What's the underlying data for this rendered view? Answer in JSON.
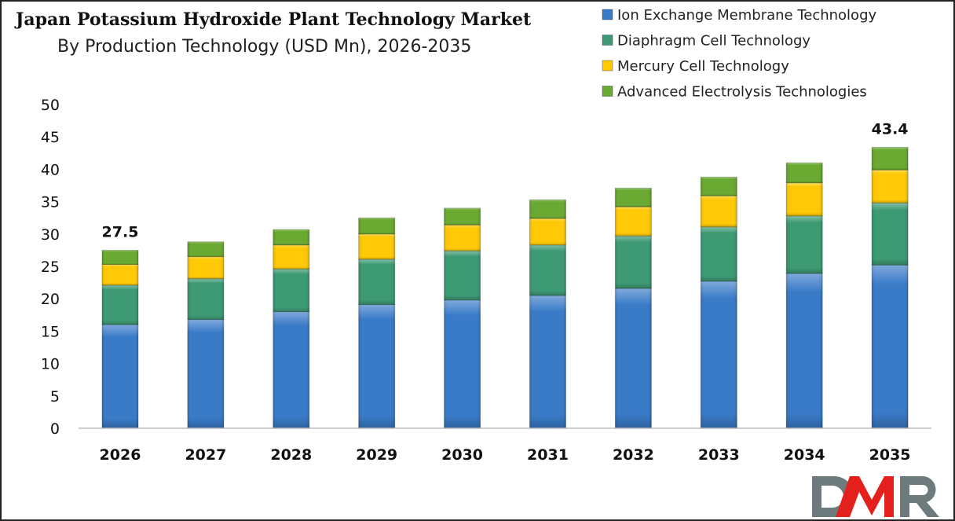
{
  "chart_data": {
    "type": "bar",
    "stacked": true,
    "title": "Japan Potassium Hydroxide Plant Technology Market",
    "subtitle": "By Production Technology (USD Mn), 2026-2035",
    "xlabel": "",
    "ylabel": "",
    "ylim": [
      0,
      50
    ],
    "yticks": [
      0,
      5,
      10,
      15,
      20,
      25,
      30,
      35,
      40,
      45,
      50
    ],
    "grid": false,
    "legend_placement": "top-right",
    "categories": [
      "2026",
      "2027",
      "2028",
      "2029",
      "2030",
      "2031",
      "2032",
      "2033",
      "2034",
      "2035"
    ],
    "series": [
      {
        "name": "Ion Exchange Membrane Technology",
        "color": "#3a7bc8",
        "values": [
          16.0,
          16.8,
          18.0,
          19.1,
          19.8,
          20.5,
          21.6,
          22.7,
          23.9,
          25.2
        ]
      },
      {
        "name": "Diaphragm Cell Technology",
        "color": "#3d9a74",
        "values": [
          6.1,
          6.3,
          6.6,
          7.0,
          7.6,
          7.8,
          8.1,
          8.4,
          8.9,
          9.6
        ]
      },
      {
        "name": "Mercury Cell Technology",
        "color": "#ffc907",
        "values": [
          3.2,
          3.4,
          3.7,
          3.9,
          4.0,
          4.1,
          4.5,
          4.8,
          5.1,
          5.1
        ]
      },
      {
        "name": "Advanced Electrolysis Technologies",
        "color": "#6aaa32",
        "values": [
          2.2,
          2.3,
          2.4,
          2.5,
          2.6,
          2.9,
          2.9,
          2.9,
          3.1,
          3.5
        ]
      }
    ],
    "data_labels": [
      {
        "category": "2026",
        "text": "27.5"
      },
      {
        "category": "2035",
        "text": "43.4"
      }
    ]
  },
  "logo": {
    "text": "DMR",
    "colors": [
      "#6e7b7c",
      "#e3201b"
    ]
  }
}
